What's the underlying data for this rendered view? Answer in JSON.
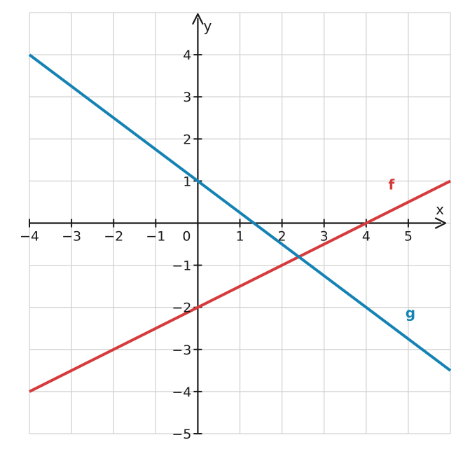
{
  "chart_data": {
    "type": "line",
    "title": "",
    "xlabel": "x",
    "ylabel": "y",
    "xlim": [
      -4,
      6
    ],
    "ylim": [
      -5,
      5
    ],
    "grid": true,
    "x_ticks": [
      -4,
      -3,
      -2,
      -1,
      0,
      1,
      2,
      3,
      4,
      5
    ],
    "y_ticks": [
      -5,
      -4,
      -3,
      -2,
      -1,
      1,
      2,
      3,
      4
    ],
    "x_tick_labels": [
      "−4",
      "−3",
      "−2",
      "−1",
      "0",
      "1",
      "2",
      "3",
      "4",
      "5"
    ],
    "y_tick_labels": [
      "−5",
      "−4",
      "−3",
      "−2",
      "−1",
      "1",
      "2",
      "3",
      "4"
    ],
    "series": [
      {
        "name": "f",
        "color": "#d63a3a",
        "x": [
          -4,
          6
        ],
        "y": [
          -4,
          1
        ],
        "label_at": [
          4.6,
          0.8
        ]
      },
      {
        "name": "g",
        "color": "#1483b3",
        "x": [
          -4,
          6
        ],
        "y": [
          4,
          -3.5
        ],
        "label_at": [
          5.05,
          -2.25
        ]
      }
    ]
  }
}
